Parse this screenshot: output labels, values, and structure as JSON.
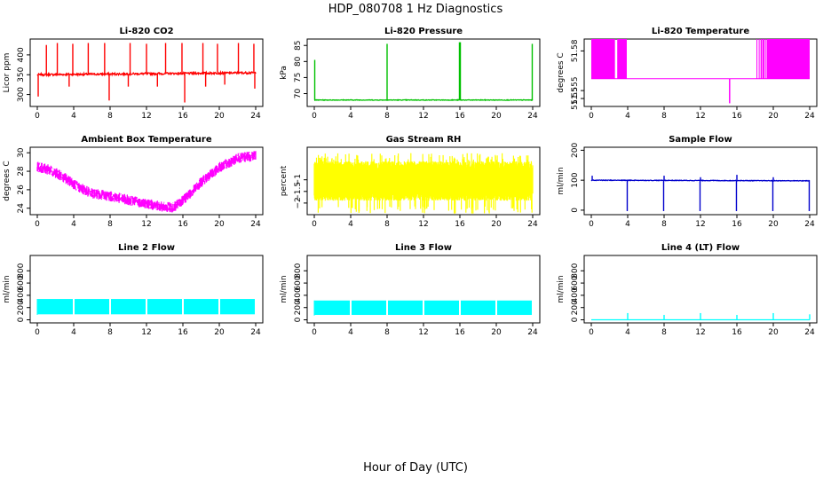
{
  "title": "HDP_080708  1 Hz Diagnostics",
  "xlabel": "Hour of Day (UTC)",
  "chart_data": [
    {
      "type": "line",
      "title": "Li-820 CO2",
      "ylabel": "Licor ppm",
      "color": "#ff0000",
      "xlim": [
        0,
        24
      ],
      "xticks": [
        0,
        4,
        8,
        12,
        16,
        20,
        24
      ],
      "ylim": [
        270,
        440
      ],
      "yticks": [
        300,
        350,
        400
      ],
      "series": [
        {
          "name": "CO2",
          "baseline": [
            [
              0,
              350
            ],
            [
              24,
              355
            ]
          ],
          "noise": 5,
          "spikes_up": [
            [
              1,
              425
            ],
            [
              2.2,
              430
            ],
            [
              3.9,
              428
            ],
            [
              5.6,
              430
            ],
            [
              7.4,
              430
            ],
            [
              10.2,
              430
            ],
            [
              12,
              428
            ],
            [
              14.1,
              430
            ],
            [
              15.9,
              430
            ],
            [
              18.2,
              430
            ],
            [
              19.8,
              428
            ],
            [
              22.1,
              430
            ],
            [
              23.8,
              428
            ]
          ],
          "spikes_down": [
            [
              0.1,
              295
            ],
            [
              3.5,
              320
            ],
            [
              7.9,
              285
            ],
            [
              10,
              320
            ],
            [
              13.2,
              320
            ],
            [
              16.2,
              280
            ],
            [
              18.5,
              320
            ],
            [
              20.6,
              325
            ],
            [
              23.9,
              315
            ]
          ]
        }
      ]
    },
    {
      "type": "line",
      "title": "Li-820 Pressure",
      "ylabel": "kPa",
      "color": "#00c000",
      "xlim": [
        0,
        24
      ],
      "xticks": [
        0,
        4,
        8,
        12,
        16,
        20,
        24
      ],
      "ylim": [
        66,
        87
      ],
      "yticks": [
        70,
        75,
        80,
        85
      ],
      "series": [
        {
          "name": "Pressure",
          "baseline": [
            [
              0,
              68
            ],
            [
              24,
              68
            ]
          ],
          "noise": 0.2,
          "spikes_up": [
            [
              0.05,
              80.5
            ],
            [
              8,
              85.5
            ],
            [
              15.95,
              86
            ],
            [
              16.05,
              86
            ],
            [
              23.95,
              85.5
            ]
          ],
          "spikes_down": []
        }
      ]
    },
    {
      "type": "line",
      "title": "Li-820 Temperature",
      "ylabel": "degrees C",
      "color": "#ff00ff",
      "xlim": [
        0,
        24
      ],
      "xticks": [
        0,
        4,
        8,
        12,
        16,
        20,
        24
      ],
      "ylim": [
        51.545,
        51.5875
      ],
      "yticks": [
        51.55,
        51.555,
        51.58
      ],
      "series": [
        {
          "name": "Temperature",
          "low": 51.5625,
          "high": 51.5875,
          "dip": [
            15.2,
            51.547
          ],
          "blocks": [
            [
              0,
              2.6
            ],
            [
              2.85,
              3.9
            ],
            [
              18.6,
              18.75
            ],
            [
              18.9,
              19.05
            ],
            [
              19.3,
              24
            ]
          ],
          "ticks": [
            3.1,
            3.5,
            18.2,
            18.45,
            18.85,
            19.2,
            19.45
          ]
        }
      ]
    },
    {
      "type": "line",
      "title": "Ambient Box Temperature",
      "ylabel": "degrees C",
      "color": "#ff00ff",
      "xlim": [
        0,
        24
      ],
      "xticks": [
        0,
        4,
        8,
        12,
        16,
        20,
        24
      ],
      "ylim": [
        23.3,
        30.6
      ],
      "yticks": [
        24,
        26,
        28,
        30
      ],
      "series": [
        {
          "name": "Ambient",
          "band": 0.8,
          "curve": [
            [
              0,
              28.5
            ],
            [
              1.5,
              28.1
            ],
            [
              3,
              27.3
            ],
            [
              4.5,
              26.3
            ],
            [
              6,
              25.6
            ],
            [
              8,
              25.3
            ],
            [
              10,
              24.9
            ],
            [
              12,
              24.5
            ],
            [
              14,
              24.1
            ],
            [
              15,
              24.1
            ],
            [
              16,
              24.8
            ],
            [
              18,
              26.8
            ],
            [
              20,
              28.4
            ],
            [
              22,
              29.4
            ],
            [
              24,
              29.7
            ]
          ]
        }
      ]
    },
    {
      "type": "line",
      "title": "Gas Stream RH",
      "ylabel": "percent",
      "color": "#ffff00",
      "xlim": [
        0,
        24
      ],
      "xticks": [
        0,
        4,
        8,
        12,
        16,
        20,
        24
      ],
      "ylim": [
        -2.5,
        0.4
      ],
      "yticks": [
        -2,
        -1.5,
        -1
      ],
      "series": [
        {
          "name": "RH",
          "band": [
            -1.9,
            -0.2
          ],
          "extremes": [
            -2.45,
            0.15
          ]
        }
      ]
    },
    {
      "type": "line",
      "title": "Sample Flow",
      "ylabel": "ml/min",
      "color": "#0000cc",
      "xlim": [
        0,
        24
      ],
      "xticks": [
        0,
        4,
        8,
        12,
        16,
        20,
        24
      ],
      "ylim": [
        -15,
        210
      ],
      "yticks": [
        0,
        100,
        200
      ],
      "series": [
        {
          "name": "Sample",
          "baseline": [
            [
              0,
              100
            ],
            [
              24,
              98
            ]
          ],
          "noise": 2,
          "spikes_up": [
            [
              0.1,
              115
            ],
            [
              8,
              115
            ],
            [
              12,
              110
            ],
            [
              16,
              118
            ],
            [
              20,
              110
            ]
          ],
          "spikes_down": [
            [
              3.95,
              -3
            ],
            [
              7.95,
              -3
            ],
            [
              11.95,
              -3
            ],
            [
              15.95,
              -3
            ],
            [
              19.95,
              -3
            ],
            [
              23.95,
              -3
            ]
          ]
        }
      ]
    },
    {
      "type": "area",
      "title": "Line 2 Flow",
      "ylabel": "ml/min",
      "color": "#00ffff",
      "xlim": [
        0,
        24
      ],
      "xticks": [
        0,
        4,
        8,
        12,
        16,
        20,
        24
      ],
      "ylim": [
        -50,
        1050
      ],
      "yticks": [
        0,
        200,
        400,
        600,
        800
      ],
      "series": [
        {
          "name": "Line 2",
          "band": [
            90,
            340
          ],
          "gaps": [
            4,
            8,
            12,
            16,
            20,
            24
          ]
        }
      ]
    },
    {
      "type": "area",
      "title": "Line 3 Flow",
      "ylabel": "ml/min",
      "color": "#00ffff",
      "xlim": [
        0,
        24
      ],
      "xticks": [
        0,
        4,
        8,
        12,
        16,
        20,
        24
      ],
      "ylim": [
        -50,
        1050
      ],
      "yticks": [
        0,
        200,
        400,
        600,
        800
      ],
      "series": [
        {
          "name": "Line 3",
          "band": [
            80,
            315
          ],
          "gaps": [
            4,
            8,
            12,
            16,
            20,
            24
          ]
        }
      ]
    },
    {
      "type": "line",
      "title": "Line 4 (LT) Flow",
      "ylabel": "ml/min",
      "color": "#00ffff",
      "xlim": [
        0,
        24
      ],
      "xticks": [
        0,
        4,
        8,
        12,
        16,
        20,
        24
      ],
      "ylim": [
        -50,
        1050
      ],
      "yticks": [
        0,
        200,
        400,
        600,
        800
      ],
      "series": [
        {
          "name": "Line 4",
          "baseline": [
            [
              0,
              0
            ],
            [
              24,
              0
            ]
          ],
          "noise": 0,
          "spikes_up": [
            [
              4,
              110
            ],
            [
              8,
              80
            ],
            [
              12,
              110
            ],
            [
              16,
              80
            ],
            [
              20,
              110
            ],
            [
              24,
              90
            ]
          ],
          "spikes_down": []
        }
      ]
    }
  ]
}
